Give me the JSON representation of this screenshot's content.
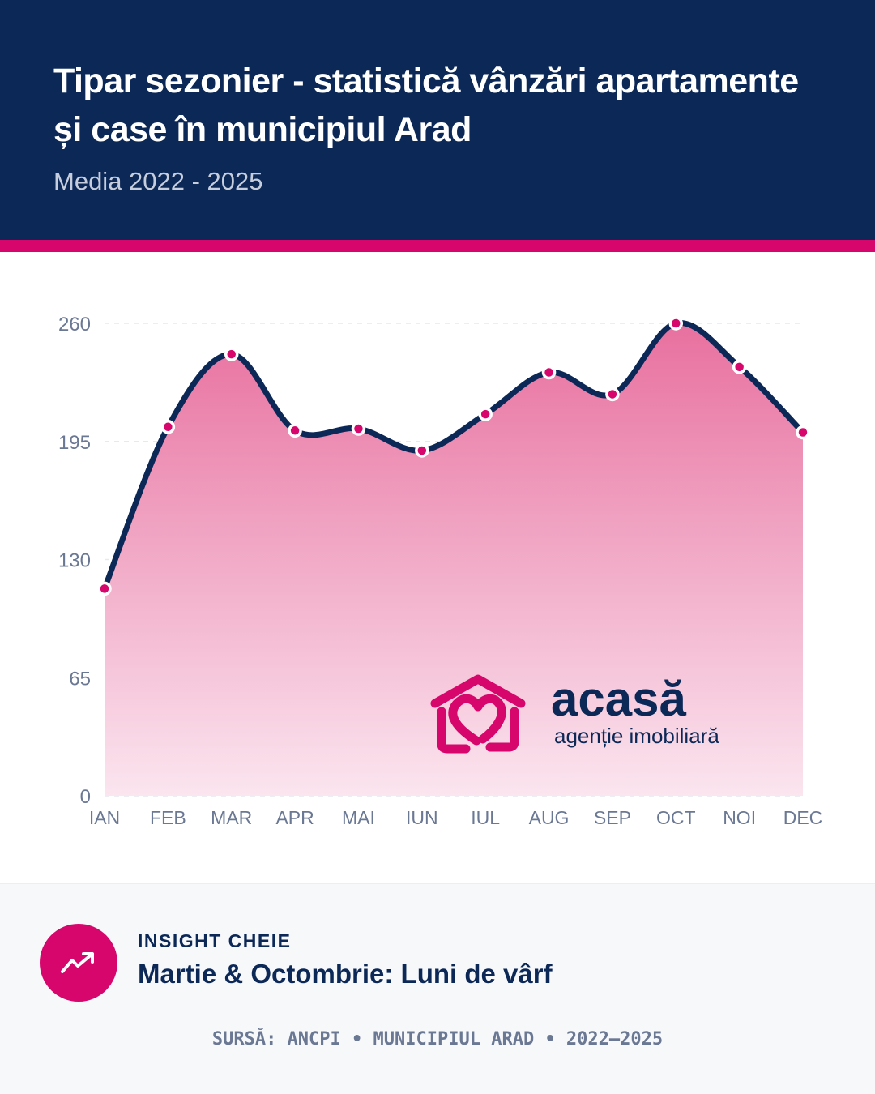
{
  "header": {
    "title": "Tipar sezonier - statistică vânzări apartamente și case în municipiul Arad",
    "subtitle": "Media 2022 - 2025"
  },
  "colors": {
    "navy": "#0c2857",
    "accent": "#d6066c"
  },
  "logo": {
    "name": "acasă",
    "tagline": "agenție imobiliară"
  },
  "chart_data": {
    "type": "area",
    "categories": [
      "IAN",
      "FEB",
      "MAR",
      "APR",
      "MAI",
      "IUN",
      "IUL",
      "AUG",
      "SEP",
      "OCT",
      "NOI",
      "DEC"
    ],
    "values": [
      114,
      203,
      243,
      201,
      202,
      190,
      210,
      233,
      221,
      260,
      236,
      200
    ],
    "ylim": [
      0,
      260
    ],
    "yticks": [
      0,
      65,
      130,
      195,
      260
    ],
    "grid": true,
    "smooth": true
  },
  "insight": {
    "label": "INSIGHT CHEIE",
    "text": "Martie & Octombrie: Luni de vârf",
    "icon": "trending-up-icon"
  },
  "source": "SURSĂ: ANCPI • MUNICIPIUL ARAD • 2022–2025"
}
